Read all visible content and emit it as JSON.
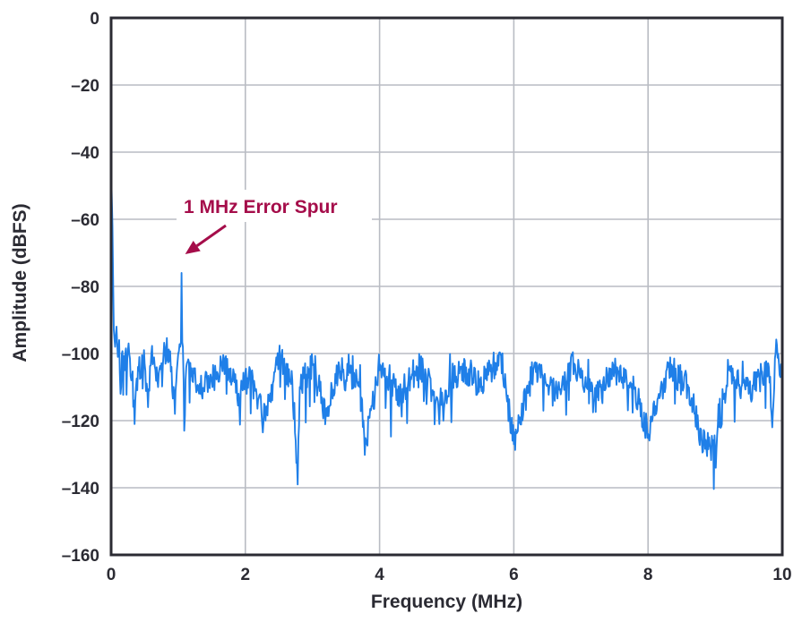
{
  "chart_data": {
    "type": "line",
    "title": "",
    "xlabel": "Frequency (MHz)",
    "ylabel": "Amplitude (dBFS)",
    "xlim": [
      0,
      10
    ],
    "ylim": [
      -160,
      0
    ],
    "xticks": [
      0,
      2,
      4,
      6,
      8,
      10
    ],
    "yticks": [
      0,
      -20,
      -40,
      -60,
      -80,
      -100,
      -120,
      -140,
      -160
    ],
    "xtick_labels": [
      "0",
      "2",
      "4",
      "6",
      "8",
      "10"
    ],
    "ytick_labels": [
      "0",
      "–20",
      "–40",
      "–60",
      "–80",
      "–100",
      "–120",
      "–140",
      "–160"
    ],
    "grid": true,
    "legend": "none",
    "series": [
      {
        "color": "#1f7fe8",
        "noise_floor_dbfs": -106,
        "points": [
          [
            0.0,
            -44
          ],
          [
            0.02,
            -62
          ],
          [
            0.04,
            -93
          ],
          [
            0.06,
            -98
          ],
          [
            0.08,
            -92
          ],
          [
            0.1,
            -101
          ],
          [
            0.12,
            -96
          ],
          [
            0.14,
            -112
          ],
          [
            0.16,
            -100
          ],
          [
            0.2,
            -105
          ],
          [
            0.25,
            -99
          ],
          [
            0.3,
            -108
          ],
          [
            0.35,
            -121
          ],
          [
            0.4,
            -104
          ],
          [
            0.5,
            -103
          ],
          [
            0.55,
            -116
          ],
          [
            0.6,
            -100
          ],
          [
            0.7,
            -110
          ],
          [
            0.8,
            -98
          ],
          [
            0.9,
            -104
          ],
          [
            0.95,
            -118
          ],
          [
            1.0,
            -100
          ],
          [
            1.03,
            -98
          ],
          [
            1.05,
            -76
          ],
          [
            1.07,
            -98
          ],
          [
            1.09,
            -123
          ],
          [
            1.12,
            -104
          ],
          [
            1.3,
            -110
          ],
          [
            1.5,
            -108
          ],
          [
            1.7,
            -102
          ],
          [
            1.9,
            -112
          ],
          [
            2.1,
            -105
          ],
          [
            2.3,
            -120
          ],
          [
            2.5,
            -101
          ],
          [
            2.7,
            -108
          ],
          [
            2.75,
            -126
          ],
          [
            2.78,
            -139
          ],
          [
            2.81,
            -110
          ],
          [
            3.0,
            -103
          ],
          [
            3.2,
            -118
          ],
          [
            3.4,
            -104
          ],
          [
            3.7,
            -110
          ],
          [
            3.8,
            -126
          ],
          [
            4.0,
            -105
          ],
          [
            4.3,
            -112
          ],
          [
            4.6,
            -103
          ],
          [
            4.9,
            -115
          ],
          [
            5.2,
            -104
          ],
          [
            5.5,
            -110
          ],
          [
            5.8,
            -100
          ],
          [
            6.0,
            -127
          ],
          [
            6.3,
            -104
          ],
          [
            6.6,
            -112
          ],
          [
            6.9,
            -103
          ],
          [
            7.2,
            -114
          ],
          [
            7.5,
            -105
          ],
          [
            7.8,
            -110
          ],
          [
            8.0,
            -124
          ],
          [
            8.3,
            -104
          ],
          [
            8.6,
            -110
          ],
          [
            8.8,
            -126
          ],
          [
            9.0,
            -129
          ],
          [
            9.2,
            -105
          ],
          [
            9.5,
            -112
          ],
          [
            9.8,
            -104
          ],
          [
            9.85,
            -122
          ],
          [
            9.9,
            -100
          ],
          [
            10.0,
            -108
          ]
        ]
      }
    ],
    "annotations": [
      {
        "text": "1 MHz Error Spur",
        "x": 1.05,
        "y": -76,
        "color": "#a50d4a"
      }
    ]
  }
}
